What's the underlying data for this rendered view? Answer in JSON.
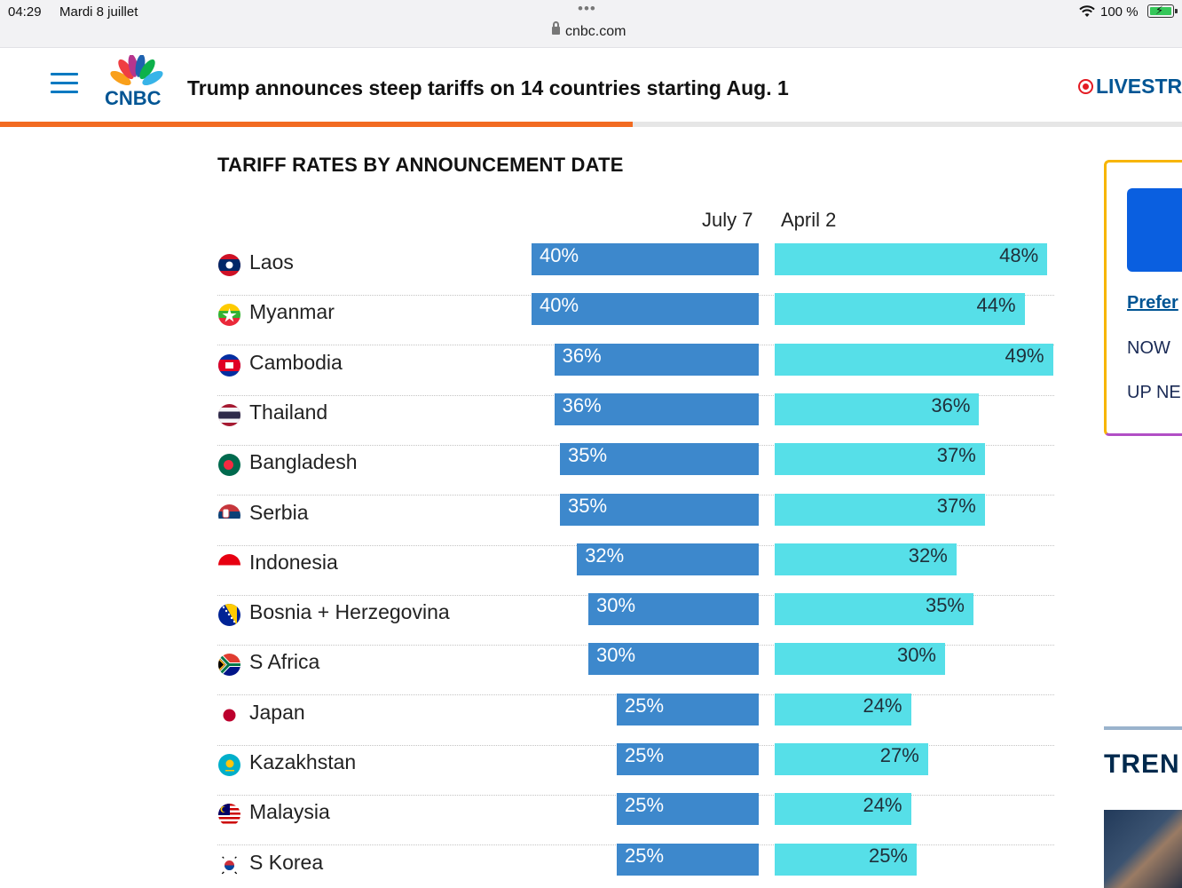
{
  "status_bar": {
    "time": "04:29",
    "date": "Mardi 8 juillet",
    "dots": "•••",
    "url": "cnbc.com",
    "battery": "100 %"
  },
  "header": {
    "logo_text": "CNBC",
    "headline": "Trump announces steep tariffs on 14 countries starting Aug. 1",
    "live_label": "LIVESTR",
    "read_progress": 0.535
  },
  "chart": {
    "title": "TARIFF RATES BY ANNOUNCEMENT DATE",
    "col_july": "July 7",
    "col_april": "April 2"
  },
  "chart_data": {
    "type": "bar",
    "title": "TARIFF RATES BY ANNOUNCEMENT DATE",
    "categories": [
      "Laos",
      "Myanmar",
      "Cambodia",
      "Thailand",
      "Bangladesh",
      "Serbia",
      "Indonesia",
      "Bosnia + Herzegovina",
      "S Africa",
      "Japan",
      "Kazakhstan",
      "Malaysia",
      "S Korea"
    ],
    "series": [
      {
        "name": "July 7",
        "values": [
          40,
          40,
          36,
          36,
          35,
          35,
          32,
          30,
          30,
          25,
          25,
          25,
          25
        ],
        "labels": [
          "40%",
          "40%",
          "36%",
          "36%",
          "35%",
          "35%",
          "32%",
          "30%",
          "30%",
          "25%",
          "25%",
          "25%",
          "25%"
        ]
      },
      {
        "name": "April 2",
        "values": [
          48,
          44,
          49,
          36,
          37,
          37,
          32,
          35,
          30,
          24,
          27,
          24,
          25
        ],
        "labels": [
          "48%",
          "44%",
          "49%",
          "36%",
          "37%",
          "37%",
          "32%",
          "35%",
          "30%",
          "24%",
          "27%",
          "24%",
          "25%"
        ]
      }
    ],
    "unit": "%",
    "colors": {
      "july": "#3d88cc",
      "april": "#56dfe8"
    }
  },
  "sidebar": {
    "prefer": "Prefer",
    "now": "NOW",
    "up_next": "UP NE",
    "trending": "TREN"
  }
}
